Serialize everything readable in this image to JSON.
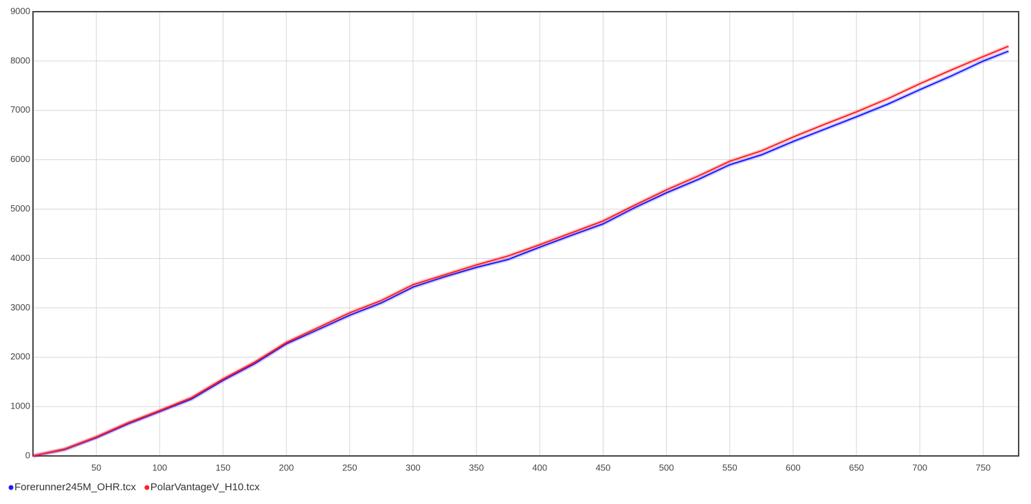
{
  "chart_data": {
    "type": "line",
    "x": [
      0,
      25,
      50,
      75,
      100,
      125,
      150,
      175,
      200,
      225,
      250,
      275,
      300,
      325,
      350,
      375,
      400,
      425,
      450,
      475,
      500,
      525,
      550,
      575,
      600,
      625,
      650,
      675,
      700,
      725,
      750,
      770
    ],
    "series": [
      {
        "name": "Forerunner245M_OHR.tcx",
        "color": "#1a1aff",
        "values": [
          0,
          130,
          370,
          650,
          900,
          1150,
          1530,
          1870,
          2270,
          2560,
          2850,
          3100,
          3420,
          3630,
          3820,
          3980,
          4230,
          4470,
          4700,
          5030,
          5330,
          5600,
          5900,
          6100,
          6370,
          6620,
          6870,
          7130,
          7420,
          7700,
          8000,
          8200
        ]
      },
      {
        "name": "PolarVantageV_H10.tcx",
        "color": "#ff2020",
        "values": [
          0,
          140,
          385,
          670,
          920,
          1180,
          1560,
          1900,
          2300,
          2600,
          2900,
          3150,
          3470,
          3670,
          3870,
          4050,
          4280,
          4520,
          4760,
          5080,
          5390,
          5670,
          5970,
          6180,
          6460,
          6720,
          6970,
          7240,
          7540,
          7820,
          8090,
          8300
        ]
      }
    ],
    "xlim": [
      0,
      778
    ],
    "xticks": [
      50,
      100,
      150,
      200,
      250,
      300,
      350,
      400,
      450,
      500,
      550,
      600,
      650,
      700,
      750
    ],
    "ylim": [
      0,
      9000
    ],
    "yticks": [
      0,
      1000,
      2000,
      3000,
      4000,
      5000,
      6000,
      7000,
      8000,
      9000
    ],
    "grid": true,
    "legend": "bottom-left"
  }
}
